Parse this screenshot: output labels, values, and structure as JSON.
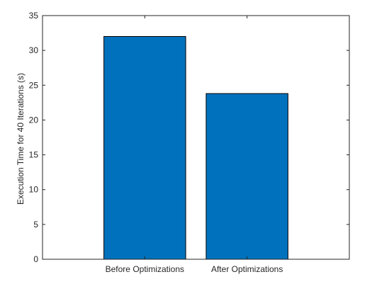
{
  "chart_data": {
    "type": "bar",
    "categories": [
      "Before Optimizations",
      "After Optimizations"
    ],
    "values": [
      32.0,
      23.8
    ],
    "title": "",
    "xlabel": "",
    "ylabel": "Execution Time for 40 Iterations (s)",
    "ylim": [
      0,
      35
    ],
    "yticks": [
      0,
      5,
      10,
      15,
      20,
      25,
      30,
      35
    ],
    "xlim": [
      0,
      3
    ],
    "grid": false,
    "bar_color": "#0072BD",
    "bar_edge_color": "#000000"
  }
}
